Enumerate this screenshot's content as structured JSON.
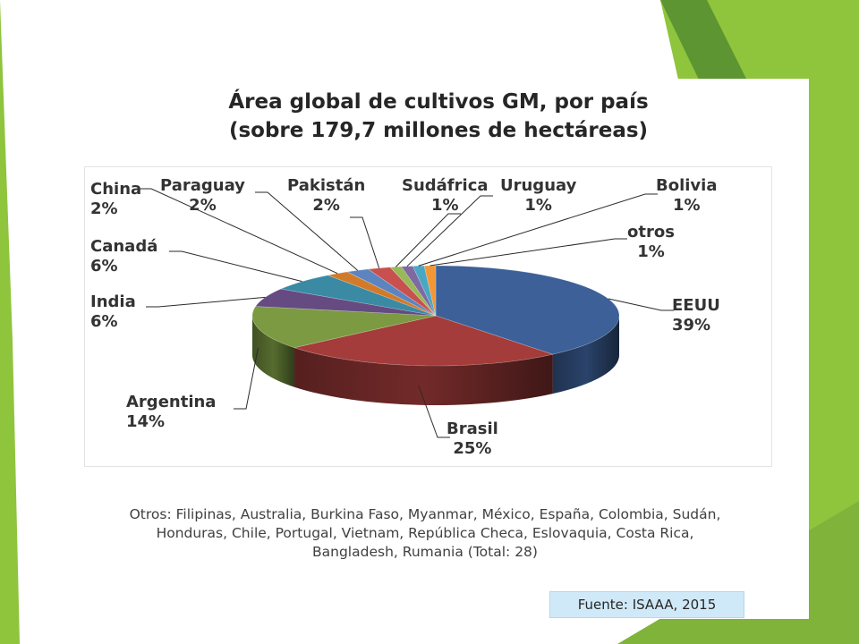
{
  "slide": {
    "title_line1": "Área global de cultivos GM, por país",
    "title_line2": "(sobre 179,7 millones de hectáreas)",
    "note_line1": "Otros: Filipinas, Australia, Burkina Faso, Myanmar, México, España, Colombia, Sudán,",
    "note_line2": "Honduras, Chile, Portugal, Vietnam, República Checa, Eslovaquia, Costa Rica,",
    "note_line3": "Bangladesh, Rumania  (Total: 28)",
    "source": "Fuente: ISAAA, 2015"
  },
  "chart_data": {
    "type": "pie",
    "style": "3d",
    "title": "Área global de cultivos GM, por país",
    "subtitle": "(sobre 179,7 millones de hectáreas)",
    "unit": "%",
    "legend": "none",
    "slices": [
      {
        "label": "EEUU",
        "value": 39,
        "display": "39%",
        "color": "#3c6097"
      },
      {
        "label": "Brasil",
        "value": 25,
        "display": "25%",
        "color": "#a33c3a"
      },
      {
        "label": "Argentina",
        "value": 14,
        "display": "14%",
        "color": "#7b9a41"
      },
      {
        "label": "India",
        "value": 6,
        "display": "6%",
        "color": "#654b82"
      },
      {
        "label": "Canadá",
        "value": 6,
        "display": "6%",
        "color": "#3a8aa3"
      },
      {
        "label": "China",
        "value": 2,
        "display": "2%",
        "color": "#d17b2a"
      },
      {
        "label": "Paraguay",
        "value": 2,
        "display": "2%",
        "color": "#5b84c0"
      },
      {
        "label": "Pakistán",
        "value": 2,
        "display": "2%",
        "color": "#c8504e"
      },
      {
        "label": "Sudáfrica",
        "value": 1,
        "display": "1%",
        "color": "#97b957"
      },
      {
        "label": "Uruguay",
        "value": 1,
        "display": "1%",
        "color": "#8068a0"
      },
      {
        "label": "Bolivia",
        "value": 1,
        "display": "1%",
        "color": "#4aa7c4"
      },
      {
        "label": "otros",
        "value": 1,
        "display": "1%",
        "color": "#f39636"
      }
    ]
  }
}
